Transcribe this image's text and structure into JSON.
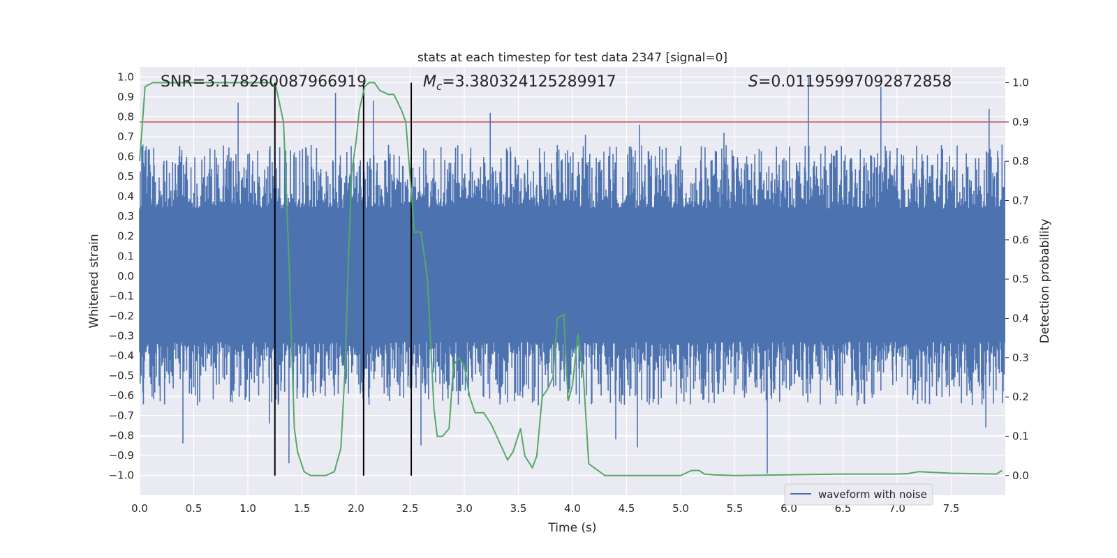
{
  "chart_data": {
    "type": "line",
    "title": "stats at each timestep for test data 2347 [signal=0]",
    "xlabel": "Time (s)",
    "ylabel": "Whitened strain",
    "y2label": "Detection probability",
    "xlim": [
      0.0,
      8.0
    ],
    "ylim": [
      -1.1,
      1.05
    ],
    "y2lim": [
      -0.05,
      1.04
    ],
    "x_ticks": [
      "0.0",
      "0.5",
      "1.0",
      "1.5",
      "2.0",
      "2.5",
      "3.0",
      "3.5",
      "4.0",
      "4.5",
      "5.0",
      "5.5",
      "6.0",
      "6.5",
      "7.0",
      "7.5"
    ],
    "y_ticks": [
      "1.0",
      "0.9",
      "0.8",
      "0.7",
      "0.6",
      "0.5",
      "0.4",
      "0.3",
      "0.2",
      "0.1",
      "0.0",
      "-0.1",
      "-0.2",
      "-0.3",
      "-0.4",
      "-0.5",
      "-0.6",
      "-0.7",
      "-0.8",
      "-0.9",
      "-1.0"
    ],
    "y2_ticks": [
      "1.0",
      "0.9",
      "0.8",
      "0.7",
      "0.6",
      "0.5",
      "0.4",
      "0.3",
      "0.2",
      "0.1",
      "0.0"
    ],
    "grid": true,
    "legend_position": "bottom-right",
    "annotations": {
      "snr": "SNR=3.178260087966919",
      "mc_symbol": "M",
      "mc_sub": "c",
      "mc_value": "=3.380324125289917",
      "s_symbol": "S",
      "s_value": "=0.011959970928728​58"
    },
    "threshold": {
      "value": 0.9,
      "color": "#c44e52"
    },
    "vertical_lines": {
      "x": [
        1.25,
        2.07,
        2.51
      ],
      "y2_top": 1.0,
      "y2_bottom": 0.0,
      "color": "#000000"
    },
    "series": [
      {
        "name": "waveform with noise",
        "axis": "left",
        "color": "#4c72b0",
        "band": {
          "lower": -0.33,
          "upper": 0.34
        },
        "peaks": [
          {
            "x": 0.03,
            "y": 0.66
          },
          {
            "x": 0.04,
            "y": 0.45
          },
          {
            "x": 0.25,
            "y": 0.58
          },
          {
            "x": 0.4,
            "y": -0.84
          },
          {
            "x": 0.91,
            "y": 0.87
          },
          {
            "x": 1.2,
            "y": -0.74
          },
          {
            "x": 1.38,
            "y": -0.94
          },
          {
            "x": 1.81,
            "y": 0.92
          },
          {
            "x": 2.16,
            "y": 0.88
          },
          {
            "x": 2.35,
            "y": 0.61
          },
          {
            "x": 2.6,
            "y": -0.85
          },
          {
            "x": 3.07,
            "y": -0.5
          },
          {
            "x": 3.24,
            "y": 0.82
          },
          {
            "x": 4.03,
            "y": -0.17
          },
          {
            "x": 4.12,
            "y": 0.71
          },
          {
            "x": 4.4,
            "y": -0.82
          },
          {
            "x": 4.6,
            "y": -0.86
          },
          {
            "x": 4.62,
            "y": 0.76
          },
          {
            "x": 5.4,
            "y": 0.72
          },
          {
            "x": 5.8,
            "y": -0.99
          },
          {
            "x": 6.18,
            "y": 1.0
          },
          {
            "x": 6.85,
            "y": 0.95
          },
          {
            "x": 7.85,
            "y": 0.84
          },
          {
            "x": 7.82,
            "y": -0.76
          },
          {
            "x": 7.97,
            "y": 0.66
          }
        ]
      },
      {
        "name": "",
        "axis": "right",
        "color": "#55a868",
        "x": [
          0.0,
          0.05,
          0.12,
          0.2,
          0.3,
          0.5,
          0.7,
          0.9,
          1.0,
          1.1,
          1.2,
          1.26,
          1.33,
          1.38,
          1.43,
          1.46,
          1.52,
          1.58,
          1.65,
          1.72,
          1.8,
          1.86,
          1.9,
          1.93,
          1.96,
          2.0,
          2.03,
          2.08,
          2.12,
          2.17,
          2.22,
          2.3,
          2.35,
          2.42,
          2.46,
          2.5,
          2.54,
          2.6,
          2.66,
          2.72,
          2.75,
          2.8,
          2.86,
          2.9,
          2.95,
          3.0,
          3.05,
          3.1,
          3.18,
          3.25,
          3.3,
          3.4,
          3.45,
          3.52,
          3.56,
          3.63,
          3.67,
          3.72,
          3.77,
          3.82,
          3.86,
          3.92,
          3.96,
          4.0,
          4.05,
          4.1,
          4.15,
          4.2,
          4.25,
          4.3,
          4.35,
          4.4,
          4.5,
          4.6,
          4.75,
          5.0,
          5.1,
          5.17,
          5.22,
          5.3,
          5.5,
          6.0,
          6.5,
          7.0,
          7.1,
          7.2,
          7.5,
          7.92,
          7.97
        ],
        "values": [
          0.8,
          0.99,
          1.0,
          1.0,
          1.0,
          1.0,
          1.0,
          1.0,
          1.0,
          1.0,
          1.0,
          0.99,
          0.9,
          0.55,
          0.12,
          0.06,
          0.01,
          0.0,
          0.0,
          0.0,
          0.01,
          0.07,
          0.28,
          0.55,
          0.77,
          0.85,
          0.93,
          0.99,
          1.0,
          1.0,
          0.98,
          0.97,
          0.97,
          0.93,
          0.9,
          0.76,
          0.62,
          0.62,
          0.5,
          0.17,
          0.1,
          0.1,
          0.12,
          0.28,
          0.3,
          0.28,
          0.2,
          0.16,
          0.16,
          0.13,
          0.1,
          0.04,
          0.06,
          0.12,
          0.05,
          0.02,
          0.05,
          0.2,
          0.22,
          0.25,
          0.4,
          0.41,
          0.19,
          0.23,
          0.36,
          0.26,
          0.03,
          0.02,
          0.01,
          0.0,
          0.0,
          0.0,
          0.0,
          0.0,
          0.0,
          0.0,
          0.013,
          0.013,
          0.004,
          0.002,
          0.0,
          0.002,
          0.004,
          0.004,
          0.005,
          0.01,
          0.006,
          0.004,
          0.013
        ]
      }
    ]
  }
}
